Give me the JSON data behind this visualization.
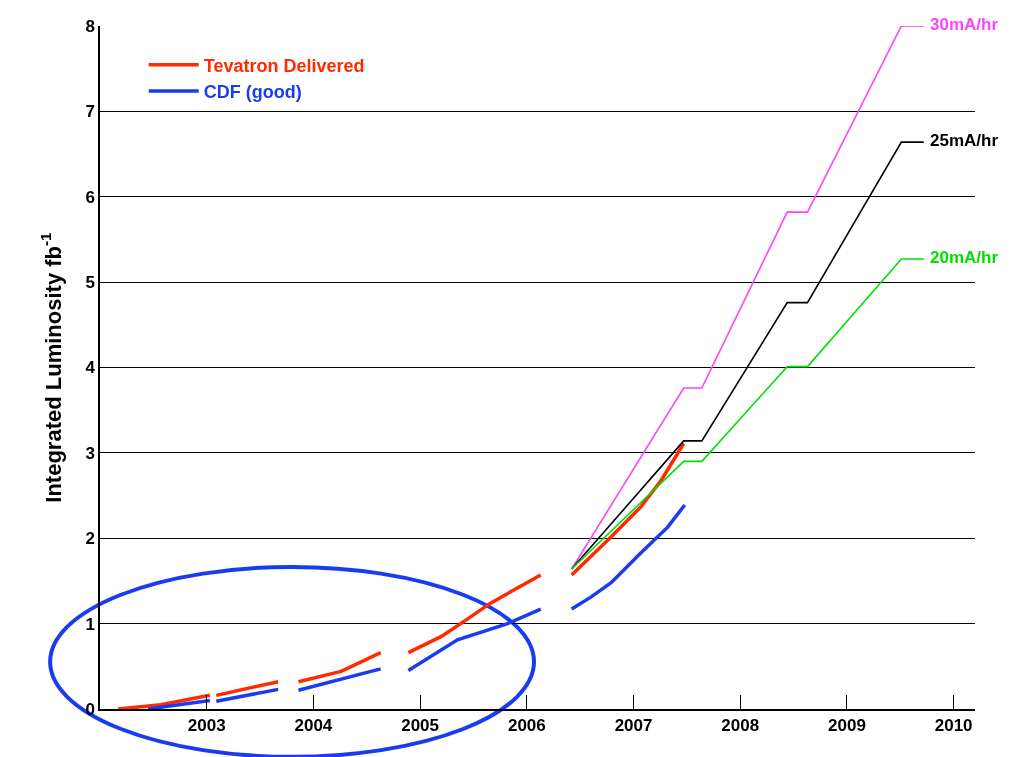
{
  "chart_data": {
    "type": "line",
    "ylabel": "Integrated Luminosity fb$^{-1}$",
    "xlim": [
      2002,
      2010.2
    ],
    "xticks": [
      {
        "value": 2003,
        "label": "2003"
      },
      {
        "value": 2004,
        "label": "2004"
      },
      {
        "value": 2005,
        "label": "2005"
      },
      {
        "value": 2006,
        "label": "2006"
      },
      {
        "value": 2007,
        "label": "2007"
      },
      {
        "value": 2008,
        "label": "2008"
      },
      {
        "value": 2009,
        "label": "2009"
      },
      {
        "value": 2010,
        "label": "2010"
      }
    ],
    "ylim": [
      0,
      8
    ],
    "yticks": [
      0,
      1,
      2,
      3,
      4,
      5,
      6,
      7,
      8
    ],
    "grid": "y",
    "legend": "top left",
    "marker": "none",
    "line_style": "solid",
    "series": [
      {
        "name": "Tevatron Delivered",
        "color": "#ff2a00",
        "x": [
          2002.17,
          2002.57,
          2003.03,
          2003.06,
          2003.09,
          2003.67,
          2003.76,
          2003.86,
          2004.26,
          2004.63,
          2004.76,
          2004.89,
          2005.2,
          2005.38,
          2005.66,
          2006.13,
          2006.27,
          2006.42,
          2006.76,
          2007.07,
          2007.26,
          2007.47
        ],
        "values": [
          0,
          0.05,
          0.16,
          null,
          0.16,
          0.32,
          null,
          0.32,
          0.44,
          0.66,
          null,
          0.66,
          0.85,
          1.0,
          1.24,
          1.57,
          null,
          1.57,
          1.98,
          2.37,
          2.68,
          3.11
        ]
      },
      {
        "name": "CDF (good)",
        "color": "#1a3cf0",
        "x": [
          2002.45,
          2003.03,
          2003.06,
          2003.09,
          2003.67,
          2003.76,
          2003.86,
          2004.63,
          2004.76,
          2004.89,
          2005.35,
          2005.82,
          2006.13,
          2006.27,
          2006.42,
          2006.6,
          2006.79,
          2007.07,
          2007.32,
          2007.48
        ],
        "values": [
          0,
          0.1,
          null,
          0.09,
          0.23,
          null,
          0.22,
          0.47,
          null,
          0.45,
          0.81,
          1.0,
          1.17,
          null,
          1.17,
          1.31,
          1.48,
          1.83,
          2.13,
          2.39
        ]
      },
      {
        "name": "30mA/hr",
        "color": "#ff44ff",
        "x": [
          2006.42,
          2007.47,
          2007.64,
          2008.44,
          2008.63,
          2009.51,
          2009.72
        ],
        "values": [
          1.64,
          3.76,
          3.76,
          5.82,
          5.82,
          8.0,
          8.0
        ]
      },
      {
        "name": "25mA/hr",
        "color": "#000000",
        "x": [
          2006.42,
          2007.47,
          2007.64,
          2008.44,
          2008.63,
          2009.51,
          2009.72
        ],
        "values": [
          1.64,
          3.14,
          3.14,
          4.76,
          4.76,
          6.64,
          6.64
        ]
      },
      {
        "name": "20mA/hr",
        "color": "#00e000",
        "x": [
          2006.42,
          2007.47,
          2007.64,
          2008.44,
          2008.63,
          2009.51,
          2009.72
        ],
        "values": [
          1.64,
          2.9,
          2.9,
          4.01,
          4.01,
          5.27,
          5.27
        ]
      }
    ]
  }
}
